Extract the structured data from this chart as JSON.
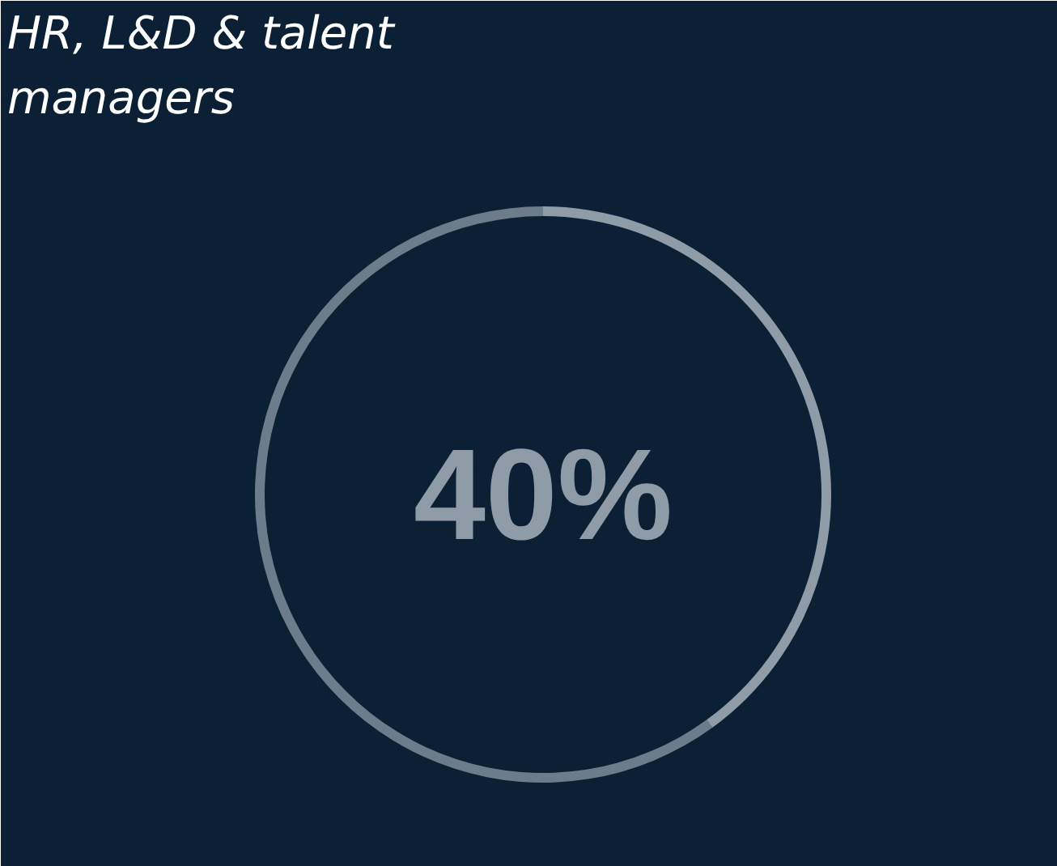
{
  "chart_data": {
    "type": "donut",
    "title": "HR, L&D & talent managers",
    "categories": [
      null,
      null
    ],
    "values": [
      40,
      60
    ],
    "colors": [
      "#8f9ba7",
      "#8f9ba7"
    ],
    "value_labels": [
      "40%",
      null
    ]
  }
}
